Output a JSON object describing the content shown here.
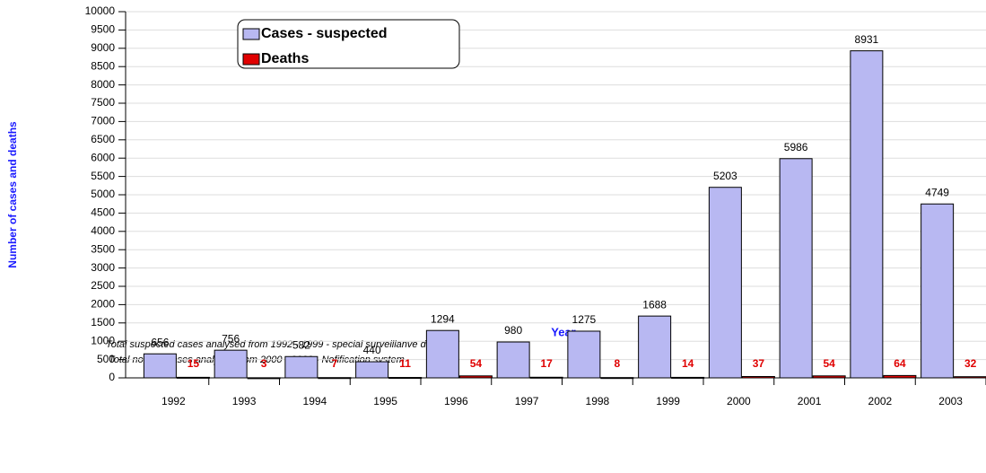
{
  "chart_data": {
    "type": "bar",
    "categories": [
      "1992",
      "1993",
      "1994",
      "1995",
      "1996",
      "1997",
      "1998",
      "1999",
      "2000",
      "2001",
      "2002",
      "2003"
    ],
    "series": [
      {
        "name": "Cases - suspected",
        "color": "#b8b8f2",
        "values": [
          656,
          756,
          582,
          440,
          1294,
          980,
          1275,
          1688,
          5203,
          5986,
          8931,
          4749
        ]
      },
      {
        "name": "Deaths",
        "color": "#e00000",
        "values": [
          15,
          3,
          7,
          11,
          54,
          17,
          8,
          14,
          37,
          54,
          64,
          32
        ]
      }
    ],
    "ylim": [
      0,
      10000
    ],
    "yticks": [
      0,
      500,
      1000,
      1500,
      2000,
      2500,
      3000,
      3500,
      4000,
      4500,
      5000,
      5500,
      6000,
      6500,
      7000,
      7500,
      8000,
      8500,
      9000,
      9500,
      10000
    ],
    "grid": true,
    "legend": "upper left",
    "xlabel": "Year",
    "ylabel": "Number of cases and deaths",
    "notes": [
      "Total suspected cases analysed from 1992 - 1999 - special surveillanve data",
      "Total notified cases  analysed from    2000 - 2003 - Nofification system"
    ]
  }
}
